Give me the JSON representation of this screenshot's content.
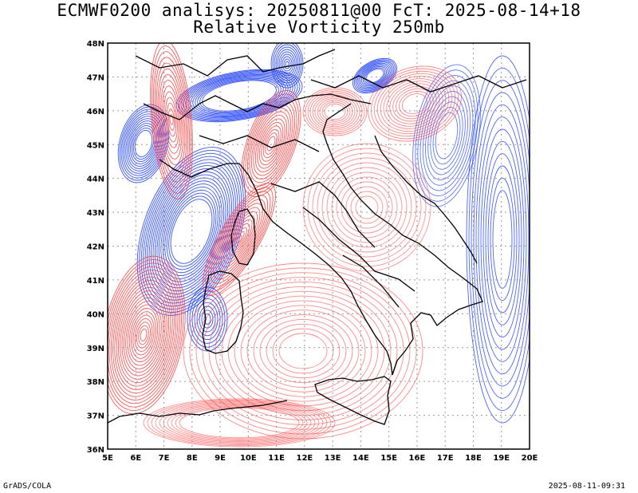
{
  "title": {
    "line1": "ECMWF0200 analisys: 20250811@00 FcT: 2025-08-14+18",
    "line2": "Relative Vorticity 250mb"
  },
  "map": {
    "lon_range": [
      5,
      20
    ],
    "lat_range": [
      36,
      48
    ],
    "lon_ticks": [
      "5E",
      "6E",
      "7E",
      "8E",
      "9E",
      "10E",
      "11E",
      "12E",
      "13E",
      "14E",
      "15E",
      "16E",
      "17E",
      "18E",
      "19E",
      "20E"
    ],
    "lat_ticks": [
      "36N",
      "37N",
      "38N",
      "39N",
      "40N",
      "41N",
      "42N",
      "43N",
      "44N",
      "45N",
      "46N",
      "47N",
      "48N"
    ],
    "grid": "dotted",
    "colors": {
      "positive_vorticity": "#ff3b3b",
      "negative_vorticity": "#2040ff",
      "coastline": "#000000",
      "grid": "#999999"
    }
  },
  "footer": {
    "credit": "GrADS/COLA",
    "timestamp": "2025-08-11-09:31"
  }
}
